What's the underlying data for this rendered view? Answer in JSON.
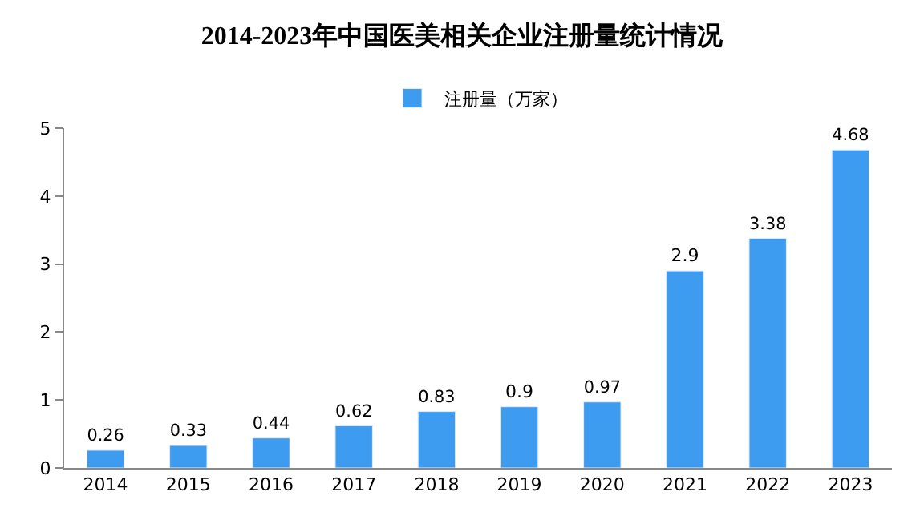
{
  "chart_data": {
    "type": "bar",
    "title": "2014-2023年中国医美相关企业注册量统计情况",
    "categories": [
      "2014",
      "2015",
      "2016",
      "2017",
      "2018",
      "2019",
      "2020",
      "2021",
      "2022",
      "2023"
    ],
    "series": [
      {
        "name": "注册量（万家）",
        "color": "#3d9cf0",
        "values": [
          0.26,
          0.33,
          0.44,
          0.62,
          0.83,
          0.9,
          0.97,
          2.9,
          3.38,
          4.68
        ]
      }
    ],
    "value_labels": [
      "0.26",
      "0.33",
      "0.44",
      "0.62",
      "0.83",
      "0.9",
      "0.97",
      "2.9",
      "3.38",
      "4.68"
    ],
    "ylim": [
      0,
      5
    ],
    "yticks": [
      0,
      1,
      2,
      3,
      4,
      5
    ],
    "grid": false,
    "legend": "top"
  }
}
